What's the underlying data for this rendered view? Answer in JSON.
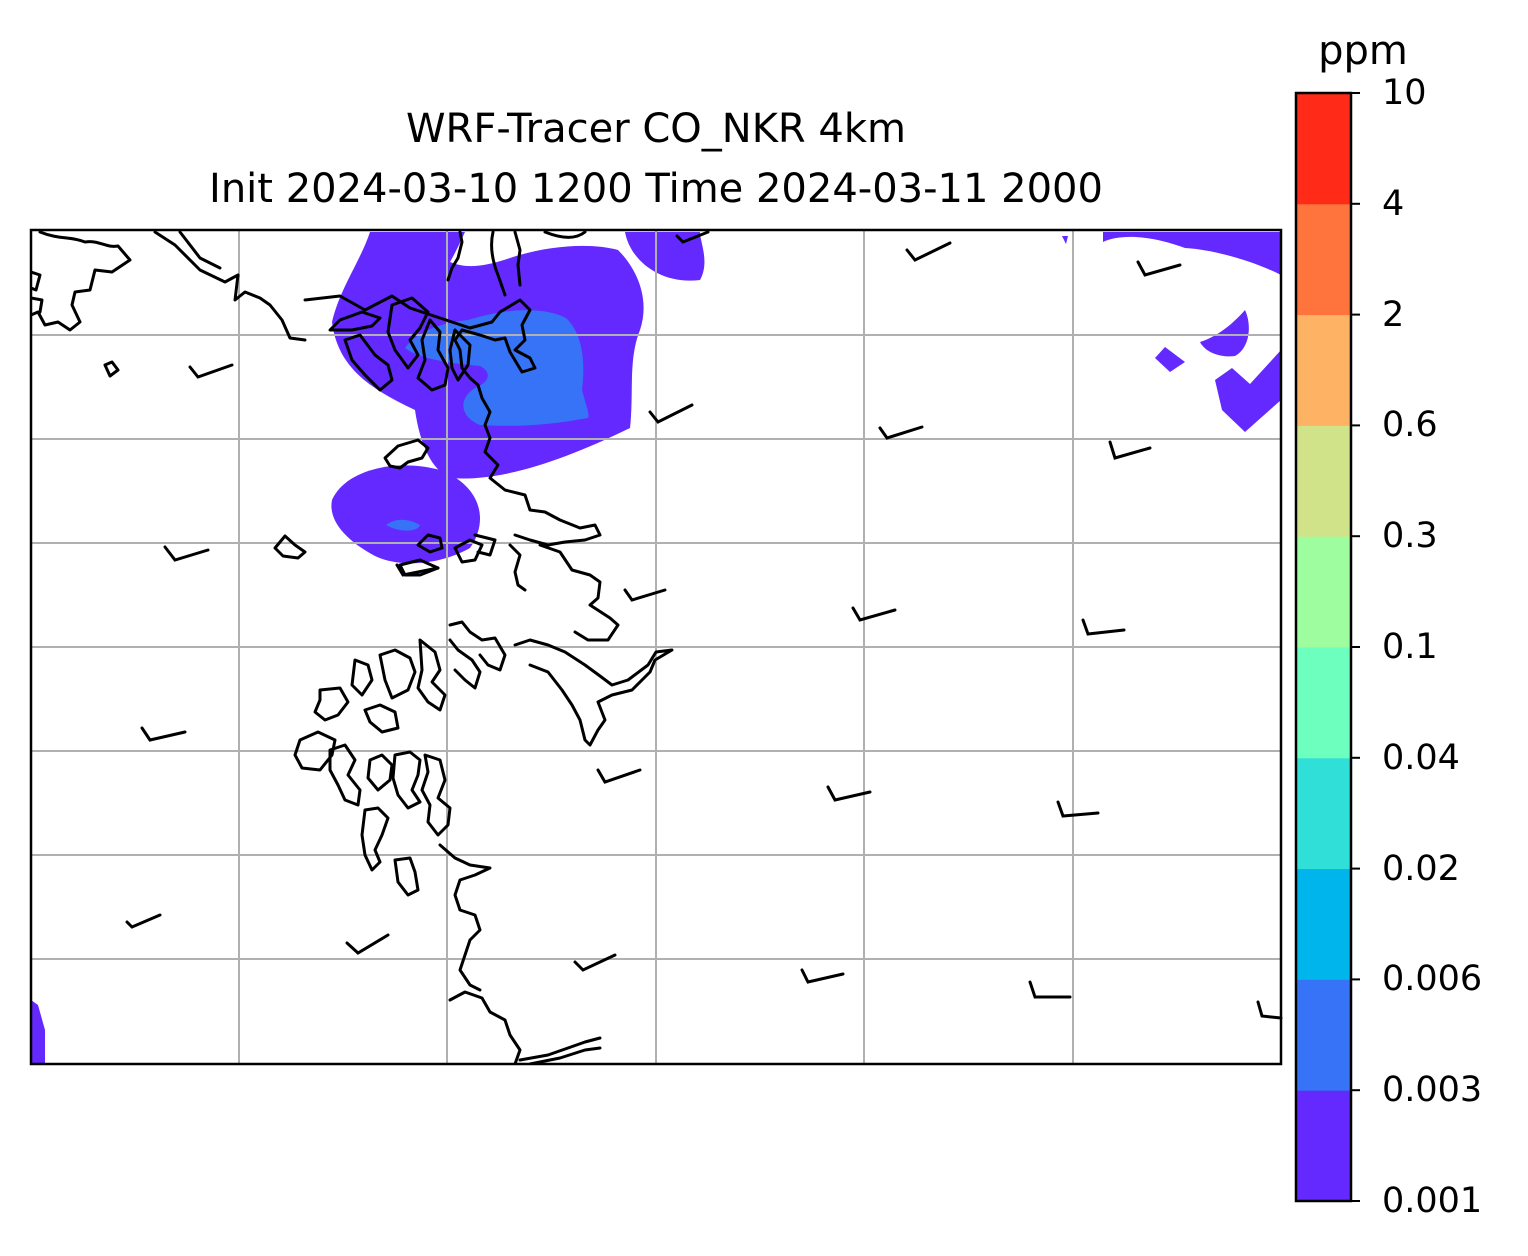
{
  "chart_data": {
    "type": "map-contour",
    "title": "WRF-Tracer CO_NKR 4km",
    "subtitle": "Init 2024-03-10 1200 Time 2024-03-11 2000",
    "colorbar": {
      "unit": "ppm",
      "levels": [
        "0.001",
        "0.003",
        "0.006",
        "0.02",
        "0.04",
        "0.1",
        "0.3",
        "0.6",
        "2",
        "4",
        "10"
      ],
      "colors": [
        "#6329ff",
        "#3773f6",
        "#00b4ec",
        "#30e0d8",
        "#6cffbe",
        "#9dfd9f",
        "#d1e388",
        "#feb264",
        "#ff743d",
        "#ff2a18"
      ]
    },
    "gridlines": true,
    "plume_levels_present": [
      "0.001",
      "0.003"
    ],
    "wind_barbs": true
  }
}
